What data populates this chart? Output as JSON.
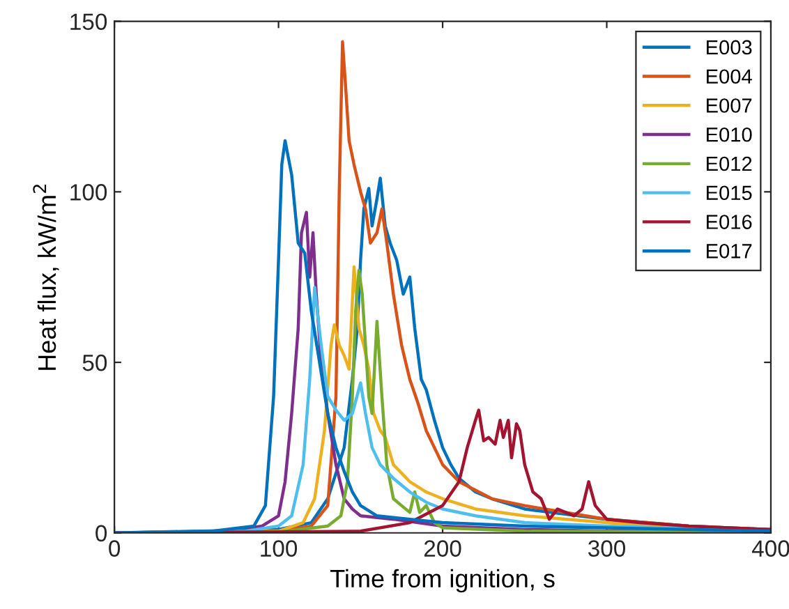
{
  "chart_data": {
    "type": "line",
    "xlabel": "Time from ignition, s",
    "ylabel": "Heat flux, kW/m$^{2}$",
    "xlim": [
      0,
      400
    ],
    "ylim": [
      0,
      150
    ],
    "xticks": [
      0,
      100,
      200,
      300,
      400
    ],
    "yticks": [
      0,
      50,
      100,
      150
    ],
    "grid": false,
    "legend": "top right",
    "marker": "none",
    "line_style": "solid",
    "series": [
      {
        "name": "E003",
        "color": "#0072bd",
        "x": [
          0,
          100,
          120,
          130,
          140,
          145,
          148,
          150,
          152,
          155,
          157,
          160,
          162,
          165,
          168,
          172,
          176,
          180,
          183,
          187,
          190,
          195,
          200,
          205,
          210,
          220,
          230,
          250,
          300,
          350,
          400
        ],
        "values": [
          0,
          1,
          3,
          10,
          25,
          45,
          60,
          80,
          95,
          101,
          90,
          98,
          104,
          90,
          85,
          80,
          70,
          75,
          60,
          45,
          42,
          33,
          25,
          20,
          16,
          12,
          10,
          7,
          4,
          2,
          1
        ]
      },
      {
        "name": "E004",
        "color": "#d95319",
        "x": [
          0,
          100,
          120,
          130,
          135,
          137,
          139,
          141,
          143,
          146,
          150,
          153,
          156,
          160,
          163,
          166,
          170,
          175,
          180,
          185,
          190,
          200,
          210,
          230,
          250,
          300,
          350,
          400
        ],
        "values": [
          0,
          0.5,
          2,
          8,
          40,
          100,
          144,
          130,
          115,
          108,
          100,
          95,
          85,
          88,
          95,
          85,
          70,
          55,
          45,
          38,
          30,
          20,
          15,
          10,
          8,
          4,
          2,
          1
        ]
      },
      {
        "name": "E007",
        "color": "#edb120",
        "x": [
          0,
          100,
          115,
          122,
          128,
          132,
          134,
          137,
          140,
          143,
          146,
          149,
          152,
          155,
          158,
          162,
          165,
          170,
          180,
          190,
          200,
          220,
          250,
          300,
          350,
          400
        ],
        "values": [
          0,
          0.5,
          3,
          10,
          30,
          55,
          61,
          55,
          52,
          48,
          78,
          60,
          55,
          48,
          35,
          30,
          28,
          20,
          15,
          12,
          10,
          7,
          5,
          3,
          1.5,
          0.8
        ]
      },
      {
        "name": "E010",
        "color": "#7e2f8e",
        "x": [
          0,
          70,
          90,
          100,
          104,
          108,
          112,
          114,
          117,
          119,
          121,
          123,
          126,
          130,
          135,
          140,
          145,
          150,
          170,
          200,
          250,
          300,
          400
        ],
        "values": [
          0,
          0.5,
          2,
          5,
          15,
          35,
          60,
          88,
          94,
          75,
          88,
          70,
          50,
          35,
          20,
          10,
          7,
          5,
          4,
          2,
          1,
          0.5,
          0.2
        ]
      },
      {
        "name": "E012",
        "color": "#77ac30",
        "x": [
          0,
          100,
          130,
          138,
          142,
          145,
          147,
          149,
          151,
          153,
          155,
          157,
          160,
          163,
          166,
          170,
          175,
          180,
          183,
          186,
          190,
          195,
          200,
          250,
          400
        ],
        "values": [
          0,
          0.2,
          2,
          5,
          15,
          40,
          65,
          77,
          70,
          55,
          40,
          35,
          62,
          40,
          20,
          10,
          8,
          6,
          12,
          6,
          8,
          3,
          1.5,
          0.5,
          0.2
        ]
      },
      {
        "name": "E015",
        "color": "#4dbeee",
        "x": [
          0,
          80,
          100,
          108,
          115,
          119,
          122,
          126,
          130,
          135,
          140,
          145,
          150,
          153,
          157,
          162,
          170,
          180,
          190,
          200,
          220,
          250,
          300,
          400
        ],
        "values": [
          0,
          0.5,
          2,
          5,
          20,
          45,
          72,
          55,
          40,
          36,
          33,
          35,
          44,
          35,
          25,
          20,
          16,
          12,
          9,
          7,
          5,
          3,
          2,
          0.5
        ]
      },
      {
        "name": "E016",
        "color": "#a2142f",
        "x": [
          0,
          150,
          180,
          200,
          210,
          215,
          220,
          222,
          225,
          228,
          232,
          235,
          237,
          240,
          242,
          245,
          247,
          250,
          255,
          260,
          265,
          270,
          275,
          280,
          285,
          289,
          293,
          300,
          320,
          350,
          400
        ],
        "values": [
          0,
          0.5,
          3,
          8,
          15,
          25,
          33,
          36,
          27,
          28,
          26,
          33,
          28,
          33,
          22,
          32,
          30,
          20,
          12,
          10,
          4,
          7,
          6,
          5,
          7,
          15,
          8,
          4,
          3,
          2,
          1
        ]
      },
      {
        "name": "E017",
        "color": "#0072bd",
        "x": [
          0,
          60,
          85,
          92,
          97,
          100,
          102,
          104,
          108,
          112,
          116,
          120,
          125,
          130,
          135,
          140,
          145,
          150,
          160,
          180,
          200,
          250,
          300,
          400
        ],
        "values": [
          0,
          0.5,
          2,
          8,
          40,
          80,
          108,
          115,
          105,
          85,
          82,
          65,
          50,
          35,
          25,
          18,
          12,
          8,
          5,
          4,
          3,
          2,
          1.5,
          0.5
        ]
      }
    ]
  }
}
